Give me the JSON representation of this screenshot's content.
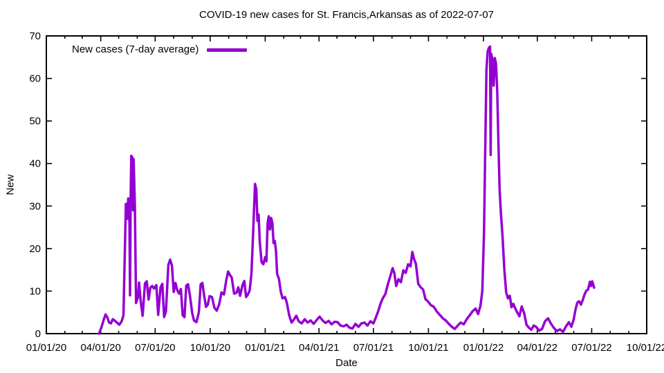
{
  "colors": {
    "line": "#9400D3",
    "axis": "#000000",
    "background": "#ffffff"
  },
  "legend": {
    "label": "New cases (7-day average)"
  },
  "chart_data": {
    "type": "line",
    "title": "COVID-19 new cases for St. Francis,Arkansas as of 2022-07-07",
    "xlabel": "Date",
    "ylabel": "New",
    "ylim": [
      0,
      70
    ],
    "y_ticks": [
      0,
      10,
      20,
      30,
      40,
      50,
      60,
      70
    ],
    "x_range": [
      "2020-01-01",
      "2022-10-01"
    ],
    "x_ticks": [
      {
        "date": "2020-01-01",
        "label": "01/01/20"
      },
      {
        "date": "2020-04-01",
        "label": "04/01/20"
      },
      {
        "date": "2020-07-01",
        "label": "07/01/20"
      },
      {
        "date": "2020-10-01",
        "label": "10/01/20"
      },
      {
        "date": "2021-01-01",
        "label": "01/01/21"
      },
      {
        "date": "2021-04-01",
        "label": "04/01/21"
      },
      {
        "date": "2021-07-01",
        "label": "07/01/21"
      },
      {
        "date": "2021-10-01",
        "label": "10/01/21"
      },
      {
        "date": "2022-01-01",
        "label": "01/01/22"
      },
      {
        "date": "2022-04-01",
        "label": "04/01/22"
      },
      {
        "date": "2022-07-01",
        "label": "07/01/22"
      },
      {
        "date": "2022-10-01",
        "label": "10/01/22"
      }
    ],
    "minor_tick_unit": "month",
    "grid": false,
    "legend_position": "top-left-inside",
    "series": [
      {
        "name": "New cases (7-day average)",
        "color": "#9400D3",
        "points": [
          [
            "2020-03-29",
            0
          ],
          [
            "2020-04-02",
            1.4
          ],
          [
            "2020-04-06",
            3.3
          ],
          [
            "2020-04-09",
            4.5
          ],
          [
            "2020-04-12",
            3.8
          ],
          [
            "2020-04-15",
            2.6
          ],
          [
            "2020-04-18",
            2.4
          ],
          [
            "2020-04-21",
            3.4
          ],
          [
            "2020-04-24",
            3.1
          ],
          [
            "2020-04-28",
            2.6
          ],
          [
            "2020-05-02",
            2.1
          ],
          [
            "2020-05-06",
            2.9
          ],
          [
            "2020-05-09",
            4.3
          ],
          [
            "2020-05-11",
            18.0
          ],
          [
            "2020-05-13",
            30.5
          ],
          [
            "2020-05-15",
            27.0
          ],
          [
            "2020-05-17",
            31.8
          ],
          [
            "2020-05-19",
            26.0
          ],
          [
            "2020-05-20",
            9.0
          ],
          [
            "2020-05-21",
            32.0
          ],
          [
            "2020-05-22",
            41.8
          ],
          [
            "2020-05-24",
            41.4
          ],
          [
            "2020-05-25",
            29.0
          ],
          [
            "2020-05-26",
            41.0
          ],
          [
            "2020-05-28",
            30.0
          ],
          [
            "2020-05-30",
            7.2
          ],
          [
            "2020-06-02",
            8.5
          ],
          [
            "2020-06-04",
            12.0
          ],
          [
            "2020-06-07",
            7.4
          ],
          [
            "2020-06-10",
            4.2
          ],
          [
            "2020-06-14",
            11.8
          ],
          [
            "2020-06-17",
            12.3
          ],
          [
            "2020-06-20",
            8.0
          ],
          [
            "2020-06-23",
            10.8
          ],
          [
            "2020-06-26",
            11.2
          ],
          [
            "2020-06-29",
            10.6
          ],
          [
            "2020-07-03",
            11.4
          ],
          [
            "2020-07-06",
            4.4
          ],
          [
            "2020-07-10",
            10.9
          ],
          [
            "2020-07-13",
            11.7
          ],
          [
            "2020-07-16",
            3.9
          ],
          [
            "2020-07-19",
            5.2
          ],
          [
            "2020-07-23",
            16.2
          ],
          [
            "2020-07-26",
            17.4
          ],
          [
            "2020-07-29",
            16.0
          ],
          [
            "2020-08-01",
            9.8
          ],
          [
            "2020-08-04",
            11.9
          ],
          [
            "2020-08-07",
            10.2
          ],
          [
            "2020-08-10",
            9.4
          ],
          [
            "2020-08-13",
            10.5
          ],
          [
            "2020-08-16",
            4.3
          ],
          [
            "2020-08-19",
            3.9
          ],
          [
            "2020-08-22",
            11.3
          ],
          [
            "2020-08-25",
            11.6
          ],
          [
            "2020-08-28",
            9.1
          ],
          [
            "2020-09-01",
            4.8
          ],
          [
            "2020-09-04",
            3.1
          ],
          [
            "2020-09-08",
            2.7
          ],
          [
            "2020-09-12",
            5.0
          ],
          [
            "2020-09-15",
            11.6
          ],
          [
            "2020-09-18",
            11.9
          ],
          [
            "2020-09-21",
            8.9
          ],
          [
            "2020-09-24",
            6.3
          ],
          [
            "2020-09-27",
            6.8
          ],
          [
            "2020-09-30",
            8.8
          ],
          [
            "2020-10-04",
            8.6
          ],
          [
            "2020-10-08",
            6.1
          ],
          [
            "2020-10-12",
            5.4
          ],
          [
            "2020-10-16",
            6.9
          ],
          [
            "2020-10-20",
            9.7
          ],
          [
            "2020-10-24",
            9.2
          ],
          [
            "2020-10-28",
            12.6
          ],
          [
            "2020-10-31",
            14.6
          ],
          [
            "2020-11-03",
            13.8
          ],
          [
            "2020-11-06",
            13.2
          ],
          [
            "2020-11-10",
            9.4
          ],
          [
            "2020-11-14",
            9.6
          ],
          [
            "2020-11-17",
            10.9
          ],
          [
            "2020-11-20",
            8.9
          ],
          [
            "2020-11-24",
            11.4
          ],
          [
            "2020-11-27",
            12.4
          ],
          [
            "2020-11-30",
            8.6
          ],
          [
            "2020-12-03",
            9.2
          ],
          [
            "2020-12-06",
            10.1
          ],
          [
            "2020-12-09",
            14.0
          ],
          [
            "2020-12-11",
            21.0
          ],
          [
            "2020-12-13",
            28.0
          ],
          [
            "2020-12-15",
            35.2
          ],
          [
            "2020-12-17",
            34.0
          ],
          [
            "2020-12-19",
            26.5
          ],
          [
            "2020-12-21",
            28.0
          ],
          [
            "2020-12-23",
            21.5
          ],
          [
            "2020-12-26",
            16.8
          ],
          [
            "2020-12-29",
            16.3
          ],
          [
            "2021-01-01",
            18.0
          ],
          [
            "2021-01-03",
            17.0
          ],
          [
            "2021-01-05",
            26.0
          ],
          [
            "2021-01-07",
            27.6
          ],
          [
            "2021-01-09",
            24.5
          ],
          [
            "2021-01-11",
            27.2
          ],
          [
            "2021-01-13",
            26.0
          ],
          [
            "2021-01-15",
            21.3
          ],
          [
            "2021-01-17",
            21.8
          ],
          [
            "2021-01-19",
            19.5
          ],
          [
            "2021-01-21",
            14.0
          ],
          [
            "2021-01-24",
            12.9
          ],
          [
            "2021-01-27",
            9.9
          ],
          [
            "2021-01-30",
            8.3
          ],
          [
            "2021-02-03",
            8.6
          ],
          [
            "2021-02-06",
            7.4
          ],
          [
            "2021-02-10",
            4.4
          ],
          [
            "2021-02-14",
            2.6
          ],
          [
            "2021-02-18",
            3.3
          ],
          [
            "2021-02-22",
            4.2
          ],
          [
            "2021-02-26",
            2.9
          ],
          [
            "2021-03-03",
            2.4
          ],
          [
            "2021-03-08",
            3.4
          ],
          [
            "2021-03-13",
            2.6
          ],
          [
            "2021-03-18",
            3.1
          ],
          [
            "2021-03-23",
            2.3
          ],
          [
            "2021-03-28",
            3.2
          ],
          [
            "2021-04-02",
            4.0
          ],
          [
            "2021-04-07",
            3.1
          ],
          [
            "2021-04-12",
            2.5
          ],
          [
            "2021-04-17",
            3.0
          ],
          [
            "2021-04-22",
            2.2
          ],
          [
            "2021-04-27",
            2.8
          ],
          [
            "2021-05-02",
            2.7
          ],
          [
            "2021-05-07",
            1.9
          ],
          [
            "2021-05-12",
            1.7
          ],
          [
            "2021-05-17",
            2.1
          ],
          [
            "2021-05-22",
            1.4
          ],
          [
            "2021-05-27",
            1.2
          ],
          [
            "2021-06-01",
            2.3
          ],
          [
            "2021-06-06",
            1.6
          ],
          [
            "2021-06-11",
            2.4
          ],
          [
            "2021-06-16",
            2.6
          ],
          [
            "2021-06-21",
            1.9
          ],
          [
            "2021-06-26",
            2.9
          ],
          [
            "2021-07-01",
            2.4
          ],
          [
            "2021-07-05",
            3.8
          ],
          [
            "2021-07-09",
            5.3
          ],
          [
            "2021-07-13",
            7.1
          ],
          [
            "2021-07-17",
            8.4
          ],
          [
            "2021-07-21",
            9.3
          ],
          [
            "2021-07-25",
            11.6
          ],
          [
            "2021-07-29",
            13.4
          ],
          [
            "2021-08-02",
            15.4
          ],
          [
            "2021-08-05",
            14.2
          ],
          [
            "2021-08-08",
            11.2
          ],
          [
            "2021-08-12",
            12.8
          ],
          [
            "2021-08-16",
            12.1
          ],
          [
            "2021-08-20",
            14.9
          ],
          [
            "2021-08-24",
            14.3
          ],
          [
            "2021-08-28",
            16.3
          ],
          [
            "2021-09-01",
            15.8
          ],
          [
            "2021-09-04",
            19.2
          ],
          [
            "2021-09-07",
            17.5
          ],
          [
            "2021-09-10",
            16.4
          ],
          [
            "2021-09-14",
            11.7
          ],
          [
            "2021-09-18",
            10.9
          ],
          [
            "2021-09-22",
            10.4
          ],
          [
            "2021-09-26",
            8.1
          ],
          [
            "2021-09-30",
            7.6
          ],
          [
            "2021-10-05",
            6.7
          ],
          [
            "2021-10-10",
            6.3
          ],
          [
            "2021-10-15",
            5.2
          ],
          [
            "2021-10-20",
            4.4
          ],
          [
            "2021-10-25",
            3.6
          ],
          [
            "2021-10-30",
            3.1
          ],
          [
            "2021-11-04",
            2.3
          ],
          [
            "2021-11-09",
            1.6
          ],
          [
            "2021-11-14",
            1.1
          ],
          [
            "2021-11-19",
            1.9
          ],
          [
            "2021-11-24",
            2.6
          ],
          [
            "2021-11-29",
            2.2
          ],
          [
            "2021-12-04",
            3.4
          ],
          [
            "2021-12-09",
            4.3
          ],
          [
            "2021-12-14",
            5.3
          ],
          [
            "2021-12-19",
            5.9
          ],
          [
            "2021-12-23",
            4.6
          ],
          [
            "2021-12-27",
            6.6
          ],
          [
            "2021-12-30",
            10.0
          ],
          [
            "2022-01-02",
            24.0
          ],
          [
            "2022-01-04",
            44.0
          ],
          [
            "2022-01-06",
            62.0
          ],
          [
            "2022-01-08",
            66.3
          ],
          [
            "2022-01-10",
            67.2
          ],
          [
            "2022-01-12",
            67.5
          ],
          [
            "2022-01-13",
            42.0
          ],
          [
            "2022-01-14",
            65.8
          ],
          [
            "2022-01-16",
            64.5
          ],
          [
            "2022-01-18",
            58.3
          ],
          [
            "2022-01-20",
            64.8
          ],
          [
            "2022-01-22",
            63.5
          ],
          [
            "2022-01-24",
            57.0
          ],
          [
            "2022-01-26",
            45.0
          ],
          [
            "2022-01-28",
            34.0
          ],
          [
            "2022-01-30",
            28.6
          ],
          [
            "2022-02-02",
            22.8
          ],
          [
            "2022-02-05",
            15.0
          ],
          [
            "2022-02-08",
            9.7
          ],
          [
            "2022-02-11",
            8.3
          ],
          [
            "2022-02-14",
            8.9
          ],
          [
            "2022-02-17",
            6.2
          ],
          [
            "2022-02-20",
            7.0
          ],
          [
            "2022-02-23",
            6.0
          ],
          [
            "2022-02-26",
            5.1
          ],
          [
            "2022-03-02",
            4.1
          ],
          [
            "2022-03-06",
            6.4
          ],
          [
            "2022-03-10",
            4.8
          ],
          [
            "2022-03-14",
            2.1
          ],
          [
            "2022-03-18",
            1.4
          ],
          [
            "2022-03-22",
            0.9
          ],
          [
            "2022-03-26",
            1.9
          ],
          [
            "2022-03-30",
            1.6
          ],
          [
            "2022-04-04",
            0.7
          ],
          [
            "2022-04-09",
            1.1
          ],
          [
            "2022-04-14",
            2.9
          ],
          [
            "2022-04-19",
            3.6
          ],
          [
            "2022-04-24",
            2.3
          ],
          [
            "2022-04-29",
            1.3
          ],
          [
            "2022-05-04",
            0.6
          ],
          [
            "2022-05-09",
            1.0
          ],
          [
            "2022-05-14",
            0.4
          ],
          [
            "2022-05-19",
            1.7
          ],
          [
            "2022-05-24",
            2.7
          ],
          [
            "2022-05-28",
            1.6
          ],
          [
            "2022-06-01",
            3.4
          ],
          [
            "2022-06-04",
            5.7
          ],
          [
            "2022-06-07",
            7.3
          ],
          [
            "2022-06-10",
            7.6
          ],
          [
            "2022-06-13",
            6.8
          ],
          [
            "2022-06-16",
            7.9
          ],
          [
            "2022-06-19",
            9.2
          ],
          [
            "2022-06-22",
            10.1
          ],
          [
            "2022-06-25",
            10.4
          ],
          [
            "2022-06-28",
            12.2
          ],
          [
            "2022-06-30",
            11.2
          ],
          [
            "2022-07-02",
            12.3
          ],
          [
            "2022-07-05",
            10.8
          ]
        ]
      }
    ]
  }
}
